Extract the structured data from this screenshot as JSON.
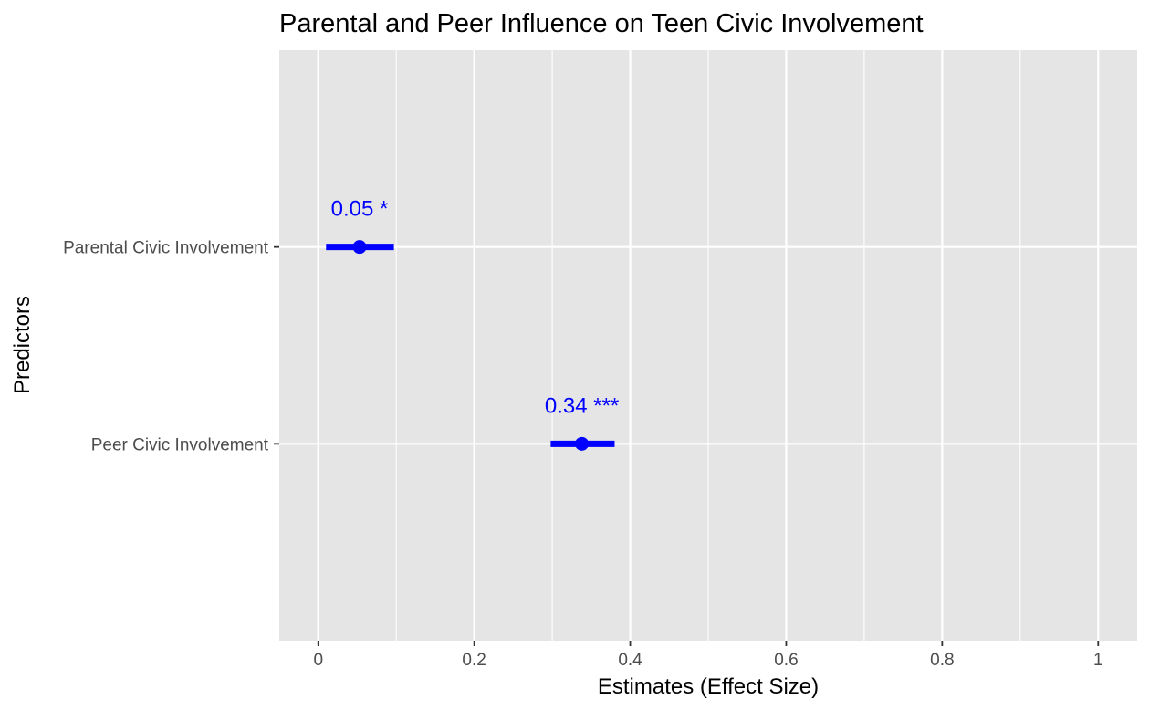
{
  "chart_data": {
    "type": "scatter",
    "title": "Parental and Peer Influence on Teen Civic Involvement",
    "xlabel": "Estimates (Effect Size)",
    "ylabel": "Predictors",
    "xlim": [
      -0.05,
      1.05
    ],
    "x_ticks": [
      0,
      0.2,
      0.4,
      0.6,
      0.8,
      1
    ],
    "x_tick_labels": [
      "0",
      "0.2",
      "0.4",
      "0.6",
      "0.8",
      "1"
    ],
    "categories": [
      "Parental Civic Involvement",
      "Peer Civic Involvement"
    ],
    "grid": true,
    "series": [
      {
        "values": [
          0.053,
          0.338
        ],
        "ci_low": [
          0.01,
          0.298
        ],
        "ci_high": [
          0.097,
          0.38
        ],
        "labels": [
          "0.05 *",
          "0.34 ***"
        ]
      }
    ],
    "colors": {
      "marker": "#0000ff",
      "panel": "#e5e5e5",
      "grid": "#ffffff"
    }
  }
}
